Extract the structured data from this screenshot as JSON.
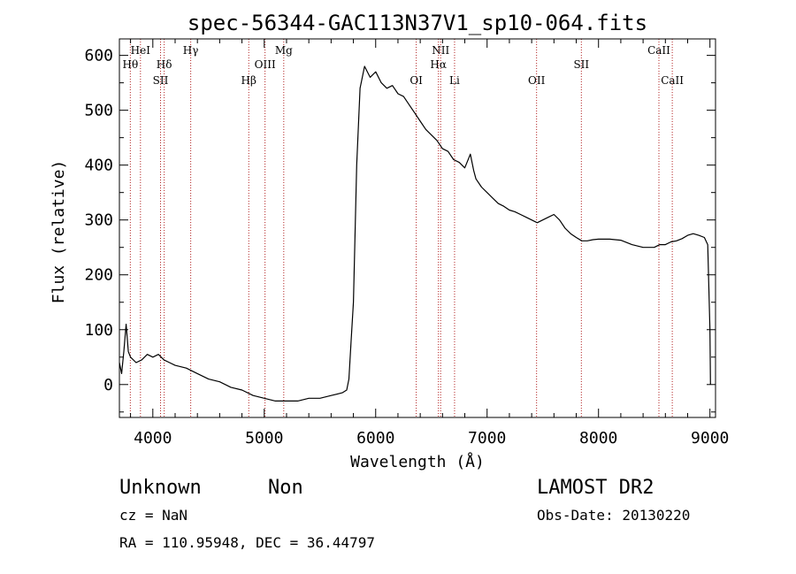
{
  "chart_data": {
    "type": "line",
    "title": "spec-56344-GAC113N37V1_sp10-064.fits",
    "xlabel": "Wavelength (Å)",
    "ylabel": "Flux (relative)",
    "xlim": [
      3700,
      9050
    ],
    "ylim": [
      -60,
      630
    ],
    "x_ticks": [
      4000,
      5000,
      6000,
      7000,
      8000,
      9000
    ],
    "x_tick_labels": [
      "4000",
      "5000",
      "6000",
      "7000",
      "8000",
      "9000"
    ],
    "y_ticks": [
      0,
      100,
      200,
      300,
      400,
      500,
      600
    ],
    "y_tick_labels": [
      "0",
      "100",
      "200",
      "300",
      "400",
      "500",
      "600"
    ],
    "grid": false,
    "series": [
      {
        "color": "#000000",
        "points": [
          [
            3700,
            40
          ],
          [
            3720,
            20
          ],
          [
            3740,
            60
          ],
          [
            3760,
            110
          ],
          [
            3780,
            60
          ],
          [
            3800,
            50
          ],
          [
            3850,
            40
          ],
          [
            3900,
            45
          ],
          [
            3950,
            55
          ],
          [
            4000,
            50
          ],
          [
            4050,
            55
          ],
          [
            4100,
            45
          ],
          [
            4150,
            40
          ],
          [
            4200,
            35
          ],
          [
            4300,
            30
          ],
          [
            4400,
            20
          ],
          [
            4500,
            10
          ],
          [
            4600,
            5
          ],
          [
            4700,
            -5
          ],
          [
            4800,
            -10
          ],
          [
            4900,
            -20
          ],
          [
            5000,
            -25
          ],
          [
            5100,
            -30
          ],
          [
            5200,
            -30
          ],
          [
            5300,
            -30
          ],
          [
            5400,
            -25
          ],
          [
            5500,
            -25
          ],
          [
            5600,
            -20
          ],
          [
            5700,
            -15
          ],
          [
            5740,
            -10
          ],
          [
            5760,
            10
          ],
          [
            5780,
            80
          ],
          [
            5800,
            150
          ],
          [
            5830,
            400
          ],
          [
            5860,
            540
          ],
          [
            5900,
            580
          ],
          [
            5950,
            560
          ],
          [
            6000,
            570
          ],
          [
            6050,
            550
          ],
          [
            6100,
            540
          ],
          [
            6150,
            545
          ],
          [
            6200,
            530
          ],
          [
            6250,
            525
          ],
          [
            6300,
            510
          ],
          [
            6350,
            495
          ],
          [
            6400,
            480
          ],
          [
            6450,
            465
          ],
          [
            6500,
            455
          ],
          [
            6550,
            445
          ],
          [
            6600,
            430
          ],
          [
            6650,
            425
          ],
          [
            6700,
            410
          ],
          [
            6750,
            405
          ],
          [
            6800,
            395
          ],
          [
            6850,
            420
          ],
          [
            6880,
            390
          ],
          [
            6900,
            375
          ],
          [
            6950,
            360
          ],
          [
            7000,
            350
          ],
          [
            7050,
            340
          ],
          [
            7100,
            330
          ],
          [
            7150,
            325
          ],
          [
            7200,
            318
          ],
          [
            7250,
            315
          ],
          [
            7300,
            310
          ],
          [
            7350,
            305
          ],
          [
            7400,
            300
          ],
          [
            7450,
            295
          ],
          [
            7500,
            300
          ],
          [
            7550,
            305
          ],
          [
            7600,
            310
          ],
          [
            7650,
            300
          ],
          [
            7700,
            285
          ],
          [
            7750,
            275
          ],
          [
            7800,
            268
          ],
          [
            7850,
            262
          ],
          [
            7900,
            262
          ],
          [
            7950,
            264
          ],
          [
            8000,
            265
          ],
          [
            8100,
            265
          ],
          [
            8200,
            263
          ],
          [
            8300,
            255
          ],
          [
            8400,
            250
          ],
          [
            8500,
            250
          ],
          [
            8550,
            255
          ],
          [
            8600,
            255
          ],
          [
            8650,
            260
          ],
          [
            8700,
            262
          ],
          [
            8750,
            266
          ],
          [
            8800,
            272
          ],
          [
            8850,
            275
          ],
          [
            8900,
            272
          ],
          [
            8950,
            268
          ],
          [
            8980,
            255
          ],
          [
            9000,
            100
          ],
          [
            9005,
            0
          ]
        ]
      }
    ],
    "line_markers": [
      {
        "name": "HeI",
        "x": 3889,
        "row": 0
      },
      {
        "name": "Hθ",
        "x": 3798,
        "row": 1
      },
      {
        "name": "Hδ",
        "x": 4102,
        "row": 1
      },
      {
        "name": "SII",
        "x": 4069,
        "row": 2
      },
      {
        "name": "Hγ",
        "x": 4340,
        "row": 0
      },
      {
        "name": "Mg",
        "x": 5175,
        "row": 0
      },
      {
        "name": "OIII",
        "x": 5007,
        "row": 1
      },
      {
        "name": "Hβ",
        "x": 4861,
        "row": 2
      },
      {
        "name": "NII",
        "x": 6583,
        "row": 0
      },
      {
        "name": "Hα",
        "x": 6563,
        "row": 1
      },
      {
        "name": "OI",
        "x": 6364,
        "row": 2
      },
      {
        "name": "Li",
        "x": 6708,
        "row": 2
      },
      {
        "name": "OII",
        "x": 7444,
        "row": 2
      },
      {
        "name": "SII",
        "x": 7846,
        "row": 1
      },
      {
        "name": "CaII",
        "x": 8542,
        "row": 0
      },
      {
        "name": "CaII",
        "x": 8662,
        "row": 2
      }
    ]
  },
  "info": {
    "left_line1_a": "Unknown",
    "left_line1_b": "Non",
    "left_line2": "cz = NaN",
    "left_line3": "RA = 110.95948, DEC =  36.44797",
    "right_line1": "LAMOST DR2",
    "right_line2": "Obs-Date: 20130220"
  }
}
